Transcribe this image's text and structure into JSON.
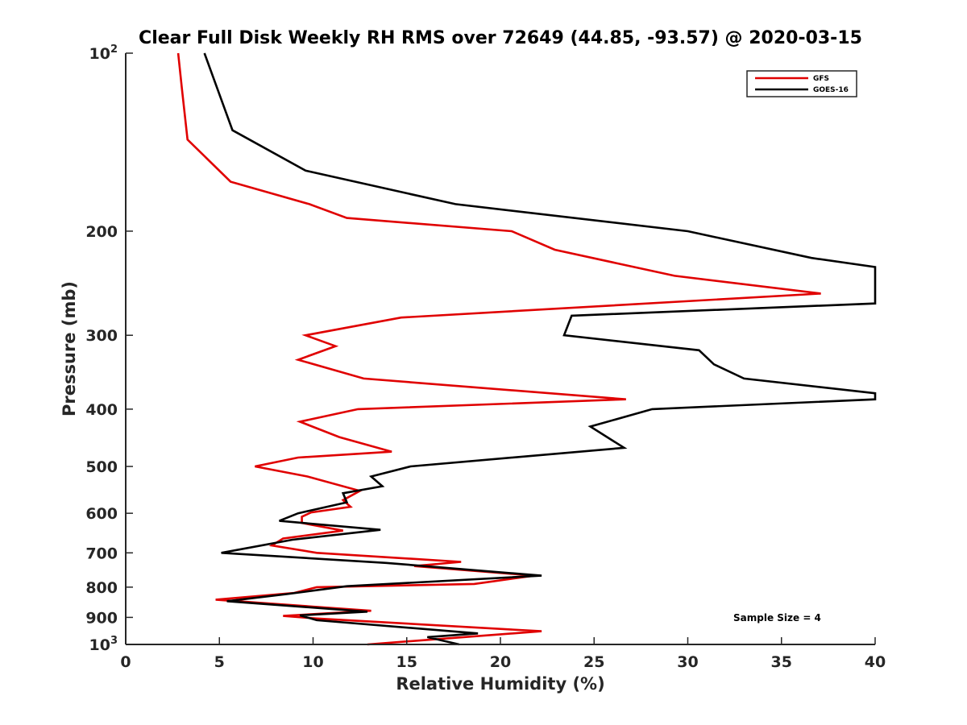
{
  "chart_data": {
    "type": "line",
    "title": "Clear Full Disk Weekly RH RMS over 72649 (44.85, -93.57) @ 2020-03-15",
    "xlabel": "Relative Humidity (%)",
    "ylabel": "Pressure (mb)",
    "xlim": [
      0,
      40
    ],
    "ylim": [
      100,
      1000
    ],
    "y_scale": "log",
    "y_reversed": true,
    "x_ticks": [
      "0",
      "5",
      "10",
      "15",
      "20",
      "25",
      "30",
      "35",
      "40"
    ],
    "y_ticks": [
      {
        "value": 100,
        "base": "10",
        "exp": "2"
      },
      {
        "value": 200,
        "label": "200"
      },
      {
        "value": 300,
        "label": "300"
      },
      {
        "value": 400,
        "label": "400"
      },
      {
        "value": 500,
        "label": "500"
      },
      {
        "value": 600,
        "label": "600"
      },
      {
        "value": 700,
        "label": "700"
      },
      {
        "value": 800,
        "label": "800"
      },
      {
        "value": 900,
        "label": "900"
      },
      {
        "value": 1000,
        "base": "10",
        "exp": "3"
      }
    ],
    "legend_position": "top-right",
    "grid": false,
    "annotation": "Sample Size = 4",
    "series": [
      {
        "name": "GFS",
        "color": "#e00000",
        "points": [
          [
            2.8,
            100
          ],
          [
            3.0,
            115
          ],
          [
            3.3,
            140
          ],
          [
            5.6,
            165
          ],
          [
            9.8,
            180
          ],
          [
            11.8,
            190
          ],
          [
            20.6,
            200
          ],
          [
            22.9,
            215
          ],
          [
            29.3,
            238
          ],
          [
            37.1,
            255
          ],
          [
            14.7,
            280
          ],
          [
            9.6,
            300
          ],
          [
            11.2,
            313
          ],
          [
            9.2,
            330
          ],
          [
            12.7,
            355
          ],
          [
            26.7,
            385
          ],
          [
            12.4,
            400
          ],
          [
            9.3,
            420
          ],
          [
            11.4,
            446
          ],
          [
            14.2,
            472
          ],
          [
            9.2,
            483
          ],
          [
            6.9,
            500
          ],
          [
            9.7,
            520
          ],
          [
            12.5,
            550
          ],
          [
            11.6,
            570
          ],
          [
            12.0,
            585
          ],
          [
            9.9,
            598
          ],
          [
            9.4,
            608
          ],
          [
            9.4,
            623
          ],
          [
            11.6,
            642
          ],
          [
            8.4,
            662
          ],
          [
            7.8,
            680
          ],
          [
            10.2,
            700
          ],
          [
            17.9,
            725
          ],
          [
            15.4,
            737
          ],
          [
            21.8,
            765
          ],
          [
            18.6,
            790
          ],
          [
            10.2,
            800
          ],
          [
            9.0,
            818
          ],
          [
            4.8,
            840
          ],
          [
            13.1,
            877
          ],
          [
            8.4,
            895
          ],
          [
            10.2,
            904
          ],
          [
            22.2,
            950
          ],
          [
            12.9,
            1000
          ]
        ]
      },
      {
        "name": "GOES-16",
        "color": "#000000",
        "points": [
          [
            4.2,
            100
          ],
          [
            4.9,
            115
          ],
          [
            5.7,
            135
          ],
          [
            9.6,
            158
          ],
          [
            17.6,
            180
          ],
          [
            30.0,
            200
          ],
          [
            36.6,
            222
          ],
          [
            40.0,
            230
          ],
          [
            40.0,
            265
          ],
          [
            23.8,
            278
          ],
          [
            23.4,
            300
          ],
          [
            30.6,
            318
          ],
          [
            31.4,
            336
          ],
          [
            33.0,
            355
          ],
          [
            40.0,
            376
          ],
          [
            40.0,
            385
          ],
          [
            28.1,
            400
          ],
          [
            24.8,
            428
          ],
          [
            26.6,
            465
          ],
          [
            15.2,
            500
          ],
          [
            13.1,
            520
          ],
          [
            13.7,
            540
          ],
          [
            11.6,
            555
          ],
          [
            11.8,
            575
          ],
          [
            9.2,
            600
          ],
          [
            8.2,
            618
          ],
          [
            13.6,
            640
          ],
          [
            8.9,
            665
          ],
          [
            5.1,
            700
          ],
          [
            13.9,
            728
          ],
          [
            22.2,
            765
          ],
          [
            11.8,
            797
          ],
          [
            8.6,
            822
          ],
          [
            5.4,
            845
          ],
          [
            12.9,
            880
          ],
          [
            9.3,
            893
          ],
          [
            10.2,
            910
          ],
          [
            18.8,
            958
          ],
          [
            16.1,
            972
          ],
          [
            17.8,
            1000
          ]
        ]
      }
    ]
  }
}
